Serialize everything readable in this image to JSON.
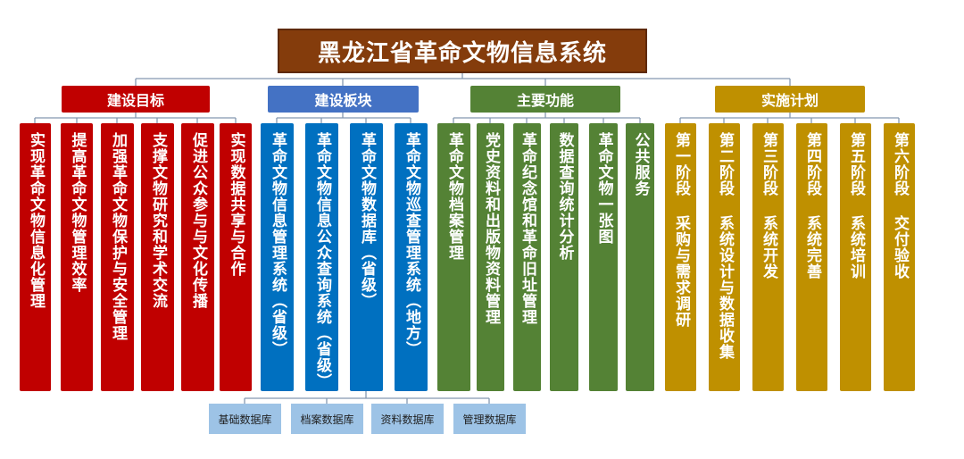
{
  "title": "黑龙江省革命文物信息系统",
  "categories": [
    {
      "label": "建设目标",
      "color": "#c00000",
      "items": [
        "实现革命文物信息化管理",
        "提高革命文物管理效率",
        "加强革命文物保护与安全管理",
        "支撑文物研究和学术交流",
        "促进公众参与与文化传播",
        "实现数据共享与合作"
      ]
    },
    {
      "label": "建设板块",
      "color": "#0070c0",
      "catColor": "#4472c4",
      "items": [
        "革命文物信息管理系统（省级）",
        "革命文物信息公众查询系统（省级）",
        "革命文物数据库（省级）",
        "革命文物巡查管理系统（地方）"
      ]
    },
    {
      "label": "主要功能",
      "color": "#548235",
      "items": [
        "革命文物档案管理",
        "党史资料和出版物资料管理",
        "革命纪念馆和革命旧址管理",
        "数据查询统计分析",
        "革命文物一张图",
        "公共服务"
      ]
    },
    {
      "label": "实施计划",
      "color": "#bf9000",
      "items": [
        "第一阶段  采购与需求调研",
        "第二阶段  系统设计与数据收集",
        "第三阶段  系统开发",
        "第四阶段  系统完善",
        "第五阶段  系统培训",
        "第六阶段  交付验收"
      ]
    }
  ],
  "databases": [
    "基础数据库",
    "档案数据库",
    "资料数据库",
    "管理数据库"
  ]
}
